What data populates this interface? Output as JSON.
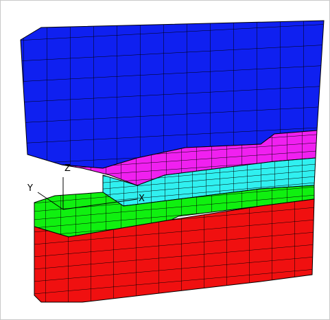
{
  "axis_labels": {
    "z": "Z",
    "y": "Y",
    "x": "X"
  }
}
